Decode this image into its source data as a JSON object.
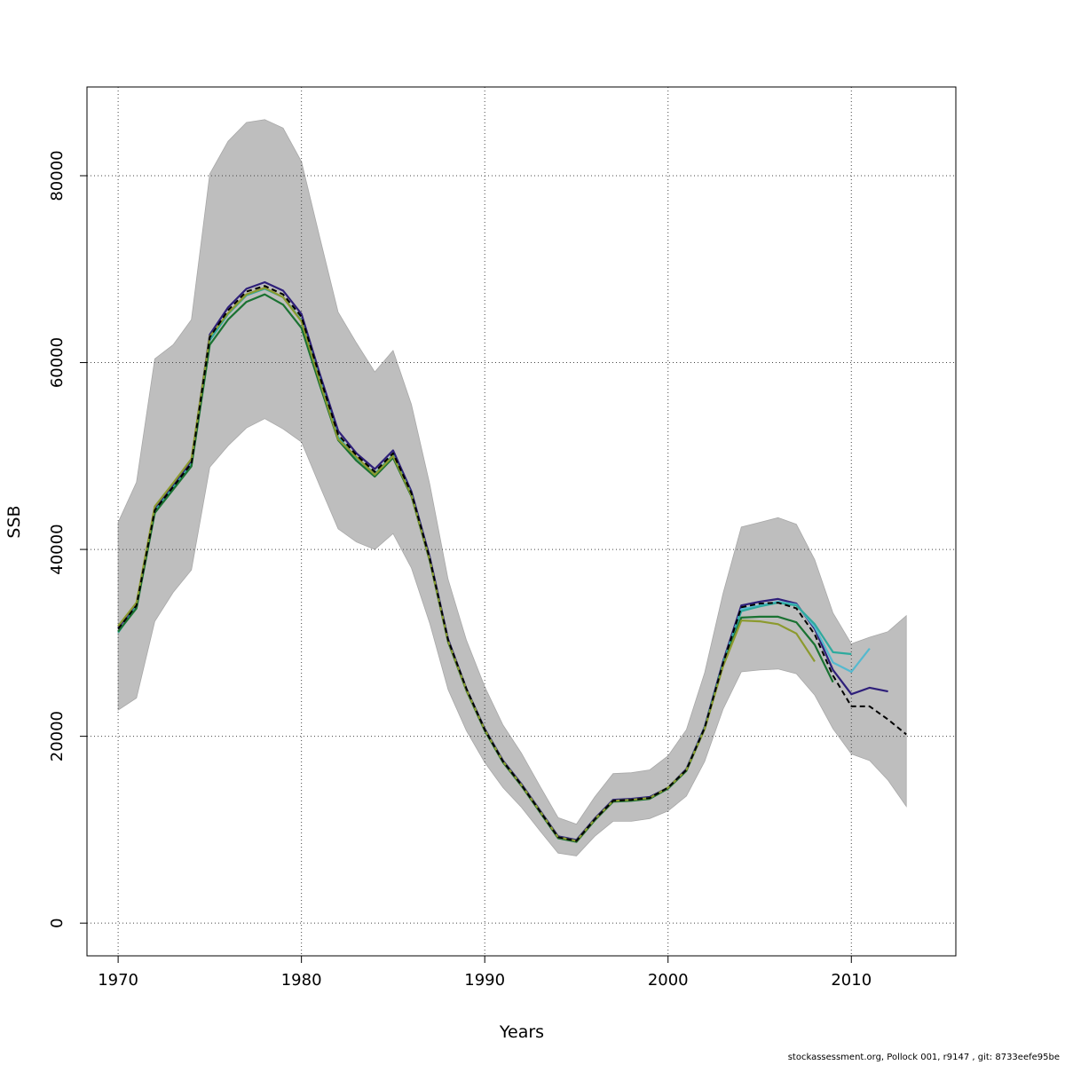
{
  "chart_data": {
    "type": "line",
    "xlabel": "Years",
    "ylabel": "SSB",
    "xlim": [
      1968.3,
      2015.7
    ],
    "ylim": [
      -3500,
      89500
    ],
    "x_ticks": [
      1970,
      1980,
      1990,
      2000,
      2010
    ],
    "y_ticks": [
      0,
      20000,
      40000,
      60000,
      80000
    ],
    "grid": true,
    "confidence_band": {
      "color": "#bebebe",
      "x": [
        1970,
        1971,
        1972,
        1973,
        1974,
        1975,
        1976,
        1977,
        1978,
        1979,
        1980,
        1981,
        1982,
        1983,
        1984,
        1985,
        1986,
        1987,
        1988,
        1989,
        1990,
        1991,
        1992,
        1993,
        1994,
        1995,
        1996,
        1997,
        1998,
        1999,
        2000,
        2001,
        2002,
        2003,
        2004,
        2005,
        2006,
        2007,
        2008,
        2009,
        2010,
        2011,
        2012,
        2013
      ],
      "lower": [
        22800,
        24100,
        32300,
        35400,
        37800,
        48800,
        51100,
        53000,
        54000,
        52900,
        51500,
        46800,
        42200,
        40800,
        40000,
        41700,
        38000,
        32100,
        25000,
        20600,
        17200,
        14500,
        12400,
        9900,
        7500,
        7200,
        9300,
        10900,
        10900,
        11200,
        12000,
        13600,
        17300,
        22900,
        26900,
        27100,
        27200,
        26700,
        24400,
        20800,
        18100,
        17400,
        15300,
        12500
      ],
      "upper": [
        42900,
        47200,
        60400,
        61900,
        64600,
        80200,
        83700,
        85700,
        86000,
        85100,
        81500,
        73400,
        65400,
        62100,
        59000,
        61300,
        55500,
        47000,
        36800,
        30300,
        25300,
        21200,
        18200,
        14700,
        11300,
        10600,
        13500,
        16000,
        16100,
        16400,
        17900,
        20700,
        26800,
        35300,
        42400,
        42900,
        43400,
        42700,
        38900,
        33200,
        29900,
        30600,
        31200,
        32900
      ]
    },
    "series": [
      {
        "color": "#000000",
        "dashed": true,
        "x": [
          1970,
          1971,
          1972,
          1973,
          1974,
          1975,
          1976,
          1977,
          1978,
          1979,
          1980,
          1981,
          1982,
          1983,
          1984,
          1985,
          1986,
          1987,
          1988,
          1989,
          1990,
          1991,
          1992,
          1993,
          1994,
          1995,
          1996,
          1997,
          1998,
          1999,
          2000,
          2001,
          2002,
          2003,
          2004,
          2005,
          2006,
          2007,
          2008,
          2009,
          2010,
          2011,
          2012,
          2013
        ],
        "values": [
          31500,
          34000,
          44200,
          46700,
          49200,
          62700,
          65600,
          67600,
          68200,
          67300,
          64900,
          58500,
          52300,
          50100,
          48300,
          50300,
          46000,
          39000,
          30300,
          25100,
          20700,
          17300,
          14800,
          12000,
          9200,
          8800,
          11100,
          13100,
          13200,
          13400,
          14500,
          16400,
          20900,
          27800,
          33800,
          34200,
          34300,
          33700,
          30900,
          26500,
          23200,
          23200,
          21800,
          20200
        ]
      },
      {
        "color": "#2e1f7a",
        "dashed": false,
        "x": [
          1970,
          1971,
          1972,
          1973,
          1974,
          1975,
          1976,
          1977,
          1978,
          1979,
          1980,
          1981,
          1982,
          1983,
          1984,
          1985,
          1986,
          1987,
          1988,
          1989,
          1990,
          1991,
          1992,
          1993,
          1994,
          1995,
          1996,
          1997,
          1998,
          1999,
          2000,
          2001,
          2002,
          2003,
          2004,
          2005,
          2006,
          2007,
          2008,
          2009,
          2010,
          2011,
          2012
        ],
        "values": [
          31600,
          34100,
          44400,
          46900,
          49500,
          63000,
          65900,
          67900,
          68600,
          67700,
          65200,
          58800,
          52700,
          50300,
          48600,
          50600,
          46200,
          39200,
          30400,
          25100,
          20800,
          17400,
          14900,
          12100,
          9300,
          8900,
          11200,
          13200,
          13300,
          13500,
          14500,
          16500,
          21000,
          28000,
          34000,
          34400,
          34700,
          34200,
          31500,
          27100,
          24500,
          25200,
          24800
        ]
      },
      {
        "color": "#55b9cf",
        "dashed": false,
        "x": [
          2003,
          2004,
          2005,
          2006,
          2007,
          2008,
          2009,
          2010,
          2011
        ],
        "values": [
          27800,
          33600,
          34000,
          34400,
          34100,
          31700,
          27900,
          26900,
          29400
        ]
      },
      {
        "color": "#2eaa9e",
        "dashed": false,
        "x": [
          1970,
          1971,
          1972,
          1973,
          1974,
          1975,
          1976,
          1977,
          1978,
          1979,
          1980,
          1981,
          1982,
          1983,
          1984,
          1985,
          1986,
          1987,
          1988,
          1989,
          1990,
          1991,
          1992,
          1993,
          1994,
          1995,
          1996,
          1997,
          1998,
          1999,
          2000,
          2001,
          2002,
          2003,
          2004,
          2005,
          2006,
          2007,
          2008,
          2009,
          2010
        ],
        "values": [
          31100,
          33900,
          44100,
          46600,
          49100,
          62400,
          65200,
          67200,
          67900,
          67000,
          64500,
          58200,
          52000,
          49800,
          48100,
          50100,
          45900,
          38900,
          30200,
          25000,
          20700,
          17300,
          14800,
          12000,
          9200,
          8800,
          11100,
          13100,
          13200,
          13400,
          14500,
          16400,
          20900,
          27800,
          33400,
          33900,
          34300,
          34000,
          32000,
          29000,
          28800
        ]
      },
      {
        "color": "#1a7232",
        "dashed": false,
        "x": [
          1970,
          1971,
          1972,
          1973,
          1974,
          1975,
          1976,
          1977,
          1978,
          1979,
          1980,
          1981,
          1982,
          1983,
          1984,
          1985,
          1986,
          1987,
          1988,
          1989,
          1990,
          1991,
          1992,
          1993,
          1994,
          1995,
          1996,
          1997,
          1998,
          1999,
          2000,
          2001,
          2002,
          2003,
          2004,
          2005,
          2006,
          2007,
          2008,
          2009
        ],
        "values": [
          31200,
          33700,
          43900,
          46400,
          48900,
          61900,
          64600,
          66500,
          67300,
          66200,
          63700,
          57600,
          51700,
          49500,
          47800,
          49800,
          45700,
          38800,
          30100,
          24900,
          20600,
          17200,
          14700,
          11900,
          9100,
          8700,
          11000,
          13000,
          13100,
          13300,
          14400,
          16300,
          20800,
          27600,
          32700,
          32800,
          32800,
          32200,
          29800,
          25800
        ]
      },
      {
        "color": "#8c9a2e",
        "dashed": false,
        "x": [
          1970,
          1971,
          1972,
          1973,
          1974,
          1975,
          1976,
          1977,
          1978,
          1979,
          1980,
          1981,
          1982,
          1983,
          1984,
          1985,
          1986,
          1987,
          1988,
          1989,
          1990,
          1991,
          1992,
          1993,
          1994,
          1995,
          1996,
          1997,
          1998,
          1999,
          2000,
          2001,
          2002,
          2003,
          2004,
          2005,
          2006,
          2007,
          2008
        ],
        "values": [
          31800,
          34300,
          44600,
          47100,
          49700,
          62800,
          65300,
          67300,
          68000,
          67000,
          64400,
          58000,
          51800,
          49900,
          48000,
          50000,
          45800,
          38900,
          30200,
          25000,
          20700,
          17300,
          14800,
          12000,
          9200,
          8800,
          11100,
          13100,
          13200,
          13400,
          14500,
          16400,
          20800,
          27500,
          32400,
          32300,
          32000,
          31000,
          28000
        ]
      }
    ]
  },
  "footer": "stockassessment.org, Pollock  001, r9147 , git: 8733eefe95be"
}
